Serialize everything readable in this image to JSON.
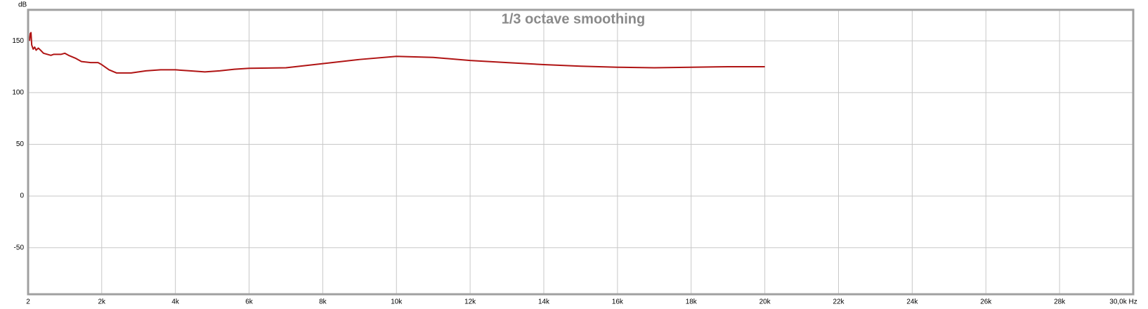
{
  "chart_data": {
    "type": "line",
    "title": "1/3 octave smoothing",
    "y_label": "dB",
    "x": [
      40,
      60,
      80,
      100,
      140,
      180,
      220,
      280,
      340,
      420,
      520,
      620,
      700,
      800,
      900,
      1000,
      1100,
      1300,
      1450,
      1700,
      1900,
      2000,
      2200,
      2400,
      2800,
      3200,
      3600,
      4000,
      4400,
      4800,
      5200,
      5600,
      6000,
      7000,
      8000,
      9000,
      10000,
      11000,
      12000,
      13000,
      14000,
      15000,
      16000,
      17000,
      18000,
      19000,
      20000
    ],
    "values": [
      150,
      157,
      158,
      146,
      142,
      144,
      141,
      143,
      141,
      138,
      137,
      136,
      137,
      137,
      137,
      138,
      136,
      133,
      130,
      129,
      129,
      127,
      122,
      119,
      119,
      121,
      122,
      122,
      121,
      120,
      121,
      122.5,
      123.5,
      124,
      128,
      132,
      135,
      134,
      131,
      129,
      127,
      125.5,
      124.5,
      124,
      124.5,
      125,
      125
    ],
    "color": "#b01414",
    "xlim": [
      2,
      30000
    ],
    "xticks": [
      2,
      {
        "value": 2000,
        "label": "2k"
      },
      {
        "value": 4000,
        "label": "4k"
      },
      {
        "value": 6000,
        "label": "6k"
      },
      {
        "value": 8000,
        "label": "8k"
      },
      {
        "value": 10000,
        "label": "10k"
      },
      {
        "value": 12000,
        "label": "12k"
      },
      {
        "value": 14000,
        "label": "14k"
      },
      {
        "value": 16000,
        "label": "16k"
      },
      {
        "value": 18000,
        "label": "18k"
      },
      {
        "value": 20000,
        "label": "20k"
      },
      {
        "value": 22000,
        "label": "22k"
      },
      {
        "value": 24000,
        "label": "24k"
      },
      {
        "value": 26000,
        "label": "26k"
      },
      {
        "value": 28000,
        "label": "28k"
      },
      {
        "value": 30000,
        "label": "30,0k Hz"
      }
    ],
    "ylim": [
      -95,
      180
    ],
    "yticks": [
      -50,
      0,
      50,
      100,
      150
    ],
    "grid": true
  }
}
